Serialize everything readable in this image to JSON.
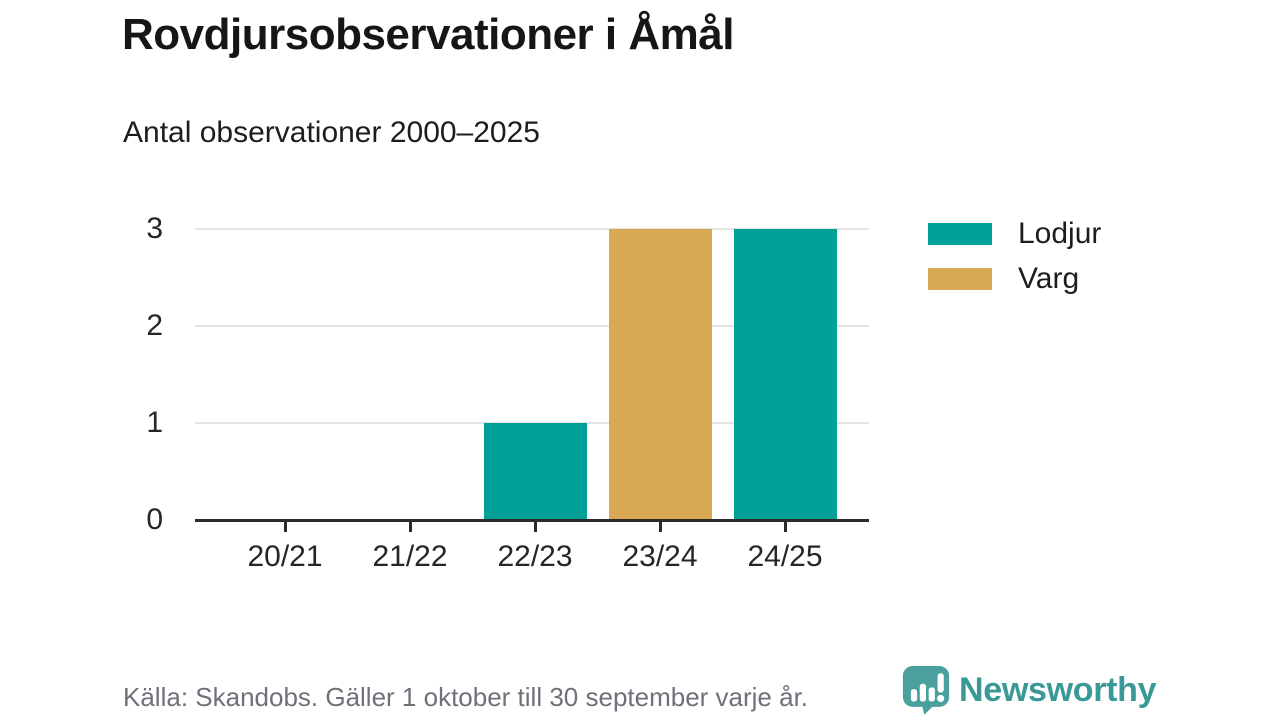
{
  "title": "Rovdjursobservationer i Åmål",
  "subtitle": "Antal observationer 2000–2025",
  "footer": {
    "source": "Källa: Skandobs. Gäller 1 oktober till 30 september varje år.",
    "brand": "Newsworthy"
  },
  "colors": {
    "teal": "#00A098",
    "gold": "#DAA955",
    "brand_teal": "#3A9996",
    "brand_icon": "#4AA09C",
    "axis": "#2B2B2B",
    "grid": "#E4E4E4",
    "tick_text": "#262626",
    "footer_text": "#70707B"
  },
  "icons": {
    "brand_icon_name": "newsworthy-speech-bubble-chart-icon"
  },
  "chart_data": {
    "type": "bar",
    "title": "Rovdjursobservationer i Åmål",
    "subtitle": "Antal observationer 2000–2025",
    "categories": [
      "20/21",
      "21/22",
      "22/23",
      "23/24",
      "24/25"
    ],
    "series": [
      {
        "name": "Lodjur",
        "color": "#00A098",
        "values": [
          0,
          0,
          1,
          0,
          3
        ]
      },
      {
        "name": "Varg",
        "color": "#DAA955",
        "values": [
          0,
          0,
          0,
          3,
          0
        ]
      }
    ],
    "xlabel": "",
    "ylabel": "",
    "ylim": [
      0,
      3
    ],
    "yticks": [
      0,
      1,
      2,
      3
    ],
    "grid": true,
    "legend_position": "right",
    "source": "Källa: Skandobs. Gäller 1 oktober till 30 september varje år."
  }
}
